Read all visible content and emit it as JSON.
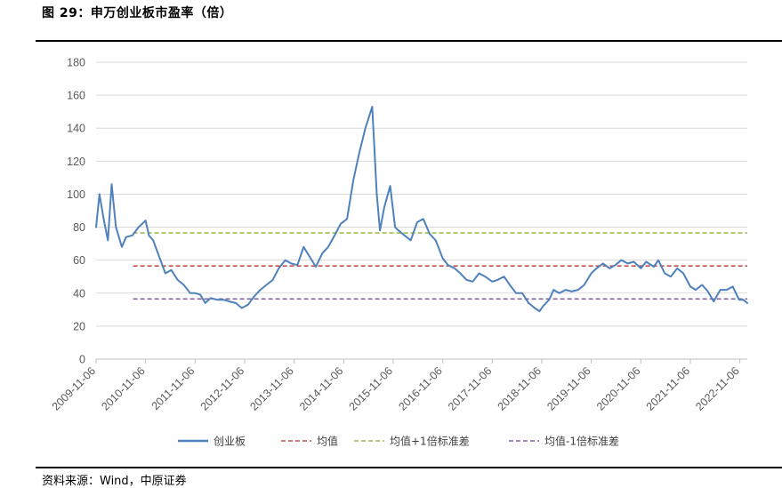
{
  "figure_title": "图 29：申万创业板市盈率（倍）",
  "source_note": "资料来源：Wind，中原证券",
  "chart_data": {
    "type": "line",
    "title": "图 29：申万创业板市盈率（倍）",
    "xlabel": "",
    "ylabel": "",
    "ylim": [
      0,
      180
    ],
    "yticks": [
      "0",
      "20",
      "40",
      "60",
      "80",
      "100",
      "120",
      "140",
      "160",
      "180"
    ],
    "xticks": [
      "2009-11-06",
      "2010-11-06",
      "2011-11-06",
      "2012-11-06",
      "2013-11-06",
      "2014-11-06",
      "2015-11-06",
      "2016-11-06",
      "2017-11-06",
      "2018-11-06",
      "2019-11-06",
      "2020-11-06",
      "2021-11-06",
      "2022-11-06"
    ],
    "xrange": [
      "2009-11-06",
      "2022-12-31"
    ],
    "grid": "horizontal",
    "legend_position": "bottom",
    "series": [
      {
        "name": "创业板",
        "color": "#4F81BD",
        "style": "solid",
        "x": [
          "2009-11-06",
          "2009-12-01",
          "2010-01-01",
          "2010-02-01",
          "2010-03-01",
          "2010-04-01",
          "2010-05-15",
          "2010-06-15",
          "2010-08-01",
          "2010-09-15",
          "2010-11-06",
          "2010-12-01",
          "2011-01-01",
          "2011-02-15",
          "2011-04-01",
          "2011-05-15",
          "2011-07-01",
          "2011-08-15",
          "2011-10-01",
          "2011-11-06",
          "2011-12-15",
          "2012-01-20",
          "2012-03-01",
          "2012-04-15",
          "2012-06-01",
          "2012-07-15",
          "2012-09-01",
          "2012-10-15",
          "2012-12-01",
          "2013-01-15",
          "2013-03-01",
          "2013-04-15",
          "2013-06-01",
          "2013-07-15",
          "2013-09-01",
          "2013-10-15",
          "2013-11-30",
          "2014-01-15",
          "2014-03-01",
          "2014-04-15",
          "2014-06-01",
          "2014-07-15",
          "2014-09-01",
          "2014-10-15",
          "2014-12-01",
          "2015-01-15",
          "2015-03-01",
          "2015-04-15",
          "2015-06-05",
          "2015-07-08",
          "2015-08-01",
          "2015-09-01",
          "2015-10-15",
          "2015-11-20",
          "2015-12-15",
          "2016-01-28",
          "2016-03-15",
          "2016-05-01",
          "2016-06-15",
          "2016-08-01",
          "2016-09-15",
          "2016-11-06",
          "2016-12-15",
          "2017-02-01",
          "2017-03-15",
          "2017-05-01",
          "2017-06-15",
          "2017-08-01",
          "2017-09-15",
          "2017-11-06",
          "2017-12-15",
          "2018-02-01",
          "2018-03-15",
          "2018-05-01",
          "2018-06-15",
          "2018-08-01",
          "2018-09-15",
          "2018-10-20",
          "2018-11-15",
          "2018-12-31",
          "2019-02-01",
          "2019-03-15",
          "2019-05-01",
          "2019-06-15",
          "2019-08-01",
          "2019-09-15",
          "2019-11-06",
          "2019-12-15",
          "2020-02-01",
          "2020-03-20",
          "2020-05-01",
          "2020-06-15",
          "2020-08-01",
          "2020-09-15",
          "2020-11-06",
          "2020-12-15",
          "2021-02-10",
          "2021-03-15",
          "2021-05-01",
          "2021-06-15",
          "2021-08-01",
          "2021-09-15",
          "2021-11-06",
          "2021-12-15",
          "2022-02-01",
          "2022-03-15",
          "2022-04-27",
          "2022-06-15",
          "2022-08-01",
          "2022-09-15",
          "2022-10-31",
          "2022-11-30",
          "2022-12-31"
        ],
        "values": [
          80,
          100,
          85,
          72,
          106,
          80,
          68,
          74,
          75,
          80,
          84,
          75,
          72,
          62,
          52,
          54,
          48,
          45,
          40,
          40,
          39,
          34,
          37,
          36,
          36,
          35,
          34,
          31,
          33,
          38,
          42,
          45,
          48,
          55,
          60,
          58,
          57,
          68,
          62,
          56,
          64,
          68,
          75,
          82,
          85,
          108,
          125,
          140,
          153,
          100,
          78,
          92,
          105,
          80,
          78,
          75,
          72,
          83,
          85,
          76,
          72,
          61,
          57,
          55,
          52,
          48,
          47,
          52,
          50,
          47,
          48,
          50,
          45,
          40,
          40,
          34,
          31,
          29,
          32,
          36,
          42,
          40,
          42,
          41,
          42,
          45,
          52,
          55,
          58,
          55,
          57,
          60,
          58,
          59,
          55,
          59,
          56,
          60,
          52,
          50,
          55,
          52,
          44,
          42,
          45,
          41,
          35,
          42,
          42,
          44,
          36,
          36,
          34
        ]
      },
      {
        "name": "均值",
        "color": "#C0504D",
        "style": "dashed",
        "value": 56.5,
        "x_start": "2010-08-06",
        "x_end": "2022-12-31"
      },
      {
        "name": "均值+1倍标准差",
        "color": "#9BBB59",
        "style": "dashed",
        "value": 76.5,
        "x_start": "2010-08-06",
        "x_end": "2022-12-31"
      },
      {
        "name": "均值-1倍标准差",
        "color": "#8064A2",
        "style": "dashed",
        "value": 36.5,
        "x_start": "2010-08-06",
        "x_end": "2022-12-31"
      }
    ]
  }
}
